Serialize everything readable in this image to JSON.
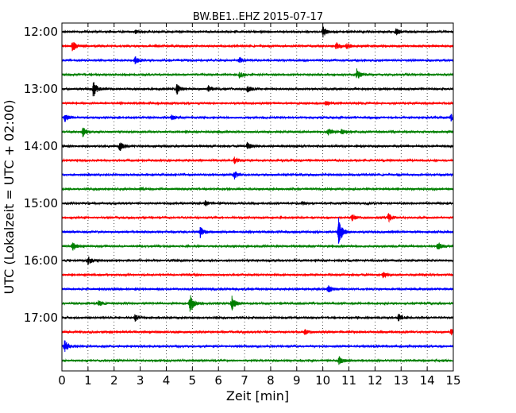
{
  "chart_data": {
    "type": "line",
    "title": "BW.BE1..EHZ 2015-07-17",
    "xlabel": "Zeit  [min]",
    "ylabel": "UTC (Lokalzeit = UTC + 02:00)",
    "xlim": [
      0,
      15
    ],
    "x_ticks": [
      "0",
      "1",
      "2",
      "3",
      "4",
      "5",
      "6",
      "7",
      "8",
      "9",
      "10",
      "11",
      "12",
      "13",
      "14",
      "15"
    ],
    "grid": "vertical dotted at every minute",
    "row_interval_minutes": 15,
    "row_start": "12:00",
    "y_ticks": [
      "12:00",
      "13:00",
      "14:00",
      "15:00",
      "16:00",
      "17:00"
    ],
    "color_cycle": [
      "#000000",
      "#ff0000",
      "#0000ff",
      "#007f00"
    ],
    "rows": [
      {
        "start": "12:00",
        "color": "#000000",
        "events": [
          {
            "t": 10.0,
            "amp": 1.0
          },
          {
            "t": 12.8,
            "amp": 0.6
          },
          {
            "t": 2.8,
            "amp": 0.3
          }
        ]
      },
      {
        "start": "12:15",
        "color": "#ff0000",
        "events": [
          {
            "t": 0.4,
            "amp": 1.0
          },
          {
            "t": 10.5,
            "amp": 0.7
          },
          {
            "t": 10.9,
            "amp": 0.5
          }
        ]
      },
      {
        "start": "12:30",
        "color": "#0000ff",
        "events": [
          {
            "t": 2.8,
            "amp": 0.7
          },
          {
            "t": 6.8,
            "amp": 0.4
          }
        ]
      },
      {
        "start": "12:45",
        "color": "#007f00",
        "events": [
          {
            "t": 6.8,
            "amp": 0.6
          },
          {
            "t": 11.3,
            "amp": 1.0
          }
        ]
      },
      {
        "start": "13:00",
        "color": "#000000",
        "events": [
          {
            "t": 1.2,
            "amp": 1.8
          },
          {
            "t": 4.4,
            "amp": 1.0
          },
          {
            "t": 5.6,
            "amp": 0.6
          },
          {
            "t": 7.1,
            "amp": 0.6
          }
        ]
      },
      {
        "start": "13:15",
        "color": "#ff0000",
        "events": [
          {
            "t": 10.1,
            "amp": 0.4
          }
        ]
      },
      {
        "start": "13:30",
        "color": "#0000ff",
        "events": [
          {
            "t": 0.1,
            "amp": 0.8
          },
          {
            "t": 4.2,
            "amp": 0.4
          },
          {
            "t": 14.9,
            "amp": 0.7
          }
        ]
      },
      {
        "start": "13:45",
        "color": "#007f00",
        "events": [
          {
            "t": 0.8,
            "amp": 0.9
          },
          {
            "t": 10.2,
            "amp": 0.6
          },
          {
            "t": 10.7,
            "amp": 0.4
          }
        ]
      },
      {
        "start": "14:00",
        "color": "#000000",
        "events": [
          {
            "t": 2.2,
            "amp": 1.0
          },
          {
            "t": 7.1,
            "amp": 0.7
          }
        ]
      },
      {
        "start": "14:15",
        "color": "#ff0000",
        "events": [
          {
            "t": 6.6,
            "amp": 0.6
          }
        ]
      },
      {
        "start": "14:30",
        "color": "#0000ff",
        "events": [
          {
            "t": 6.6,
            "amp": 0.8
          }
        ]
      },
      {
        "start": "14:45",
        "color": "#007f00",
        "events": [
          {
            "t": 3.0,
            "amp": 0.3
          }
        ]
      },
      {
        "start": "15:00",
        "color": "#000000",
        "events": [
          {
            "t": 5.5,
            "amp": 0.5
          },
          {
            "t": 9.2,
            "amp": 0.3
          }
        ]
      },
      {
        "start": "15:15",
        "color": "#ff0000",
        "events": [
          {
            "t": 11.1,
            "amp": 0.6
          },
          {
            "t": 12.5,
            "amp": 0.8
          }
        ]
      },
      {
        "start": "15:30",
        "color": "#0000ff",
        "events": [
          {
            "t": 5.3,
            "amp": 1.0
          },
          {
            "t": 10.6,
            "amp": 2.6
          }
        ]
      },
      {
        "start": "15:45",
        "color": "#007f00",
        "events": [
          {
            "t": 0.4,
            "amp": 0.8
          },
          {
            "t": 14.4,
            "amp": 0.8
          }
        ]
      },
      {
        "start": "16:00",
        "color": "#000000",
        "events": [
          {
            "t": 1.0,
            "amp": 0.8
          }
        ]
      },
      {
        "start": "16:15",
        "color": "#ff0000",
        "events": [
          {
            "t": 12.3,
            "amp": 0.5
          }
        ]
      },
      {
        "start": "16:30",
        "color": "#0000ff",
        "events": [
          {
            "t": 10.2,
            "amp": 0.7
          }
        ]
      },
      {
        "start": "16:45",
        "color": "#007f00",
        "events": [
          {
            "t": 1.4,
            "amp": 0.6
          },
          {
            "t": 4.9,
            "amp": 2.0
          },
          {
            "t": 6.5,
            "amp": 1.4
          }
        ]
      },
      {
        "start": "17:00",
        "color": "#000000",
        "events": [
          {
            "t": 2.8,
            "amp": 0.6
          },
          {
            "t": 12.9,
            "amp": 0.7
          }
        ]
      },
      {
        "start": "17:15",
        "color": "#ff0000",
        "events": [
          {
            "t": 9.3,
            "amp": 0.5
          },
          {
            "t": 14.9,
            "amp": 0.6
          }
        ]
      },
      {
        "start": "17:30",
        "color": "#0000ff",
        "events": [
          {
            "t": 0.1,
            "amp": 1.2
          }
        ]
      },
      {
        "start": "17:45",
        "color": "#007f00",
        "events": [
          {
            "t": 10.6,
            "amp": 0.9
          }
        ]
      }
    ]
  }
}
